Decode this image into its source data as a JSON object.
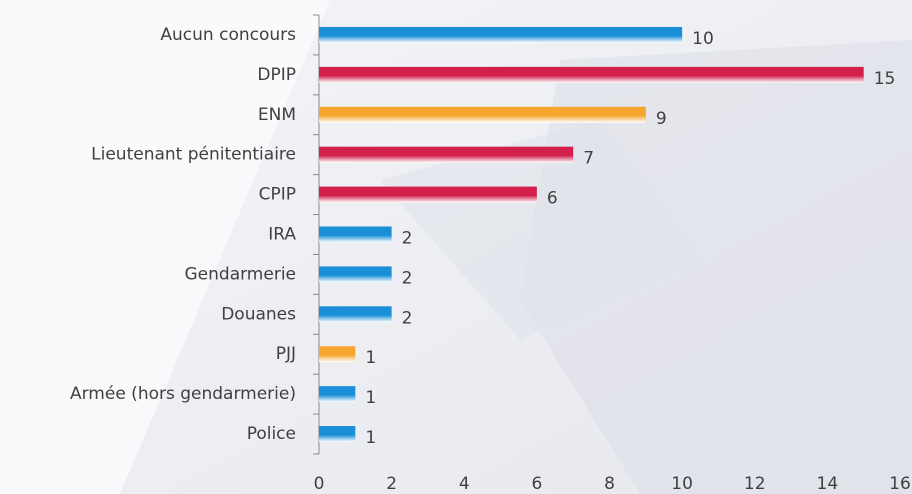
{
  "chart_data": {
    "type": "bar",
    "orientation": "horizontal",
    "categories": [
      "Aucun concours",
      "DPIP",
      "ENM",
      "Lieutenant pénitentiaire",
      "CPIP",
      "IRA",
      "Gendarmerie",
      "Douanes",
      "PJJ",
      "Armée (hors gendarmerie)",
      "Police"
    ],
    "values": [
      10,
      15,
      9,
      7,
      6,
      2,
      2,
      2,
      1,
      1,
      1
    ],
    "colors": [
      "#1a8fd8",
      "#d21f4b",
      "#f5a530",
      "#d21f4b",
      "#d21f4b",
      "#1a8fd8",
      "#1a8fd8",
      "#1a8fd8",
      "#f5a530",
      "#1a8fd8",
      "#1a8fd8"
    ],
    "xlim": [
      0,
      16
    ],
    "xticks": [
      0,
      2,
      4,
      6,
      8,
      10,
      12,
      14,
      16
    ],
    "grid": false
  }
}
